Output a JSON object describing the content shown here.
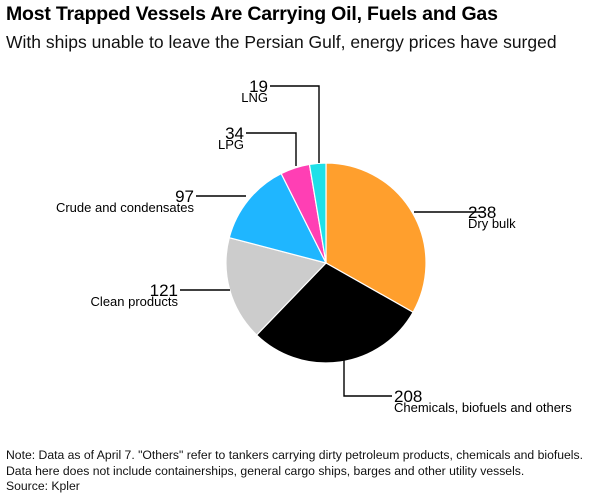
{
  "header": {
    "title": "Most Trapped Vessels Are Carrying Oil, Fuels and Gas",
    "subtitle": "With ships unable to leave the Persian Gulf, energy prices have surged"
  },
  "footer": {
    "note_line1": "Note: Data as of April 7. \"Others\" refer to tankers carrying dirty petroleum products, chemicals and biofuels.",
    "note_line2": "Data here does not include containerships, general cargo ships, barges and other utility vessels.",
    "source": "Source: Kpler"
  },
  "chart_data": {
    "type": "pie",
    "title": "Most Trapped Vessels Are Carrying Oil, Fuels and Gas",
    "subtitle": "With ships unable to leave the Persian Gulf, energy prices have surged",
    "categories": [
      "Dry bulk",
      "Chemicals, biofuels and others",
      "Clean products",
      "Crude and condensates",
      "LPG",
      "LNG"
    ],
    "values": [
      238,
      208,
      121,
      97,
      34,
      19
    ],
    "colors": [
      "#ff9f2d",
      "#000000",
      "#cccccc",
      "#1fb6ff",
      "#ff3fb4",
      "#1ee0e8"
    ],
    "legend": "none",
    "direct_labels": true
  }
}
